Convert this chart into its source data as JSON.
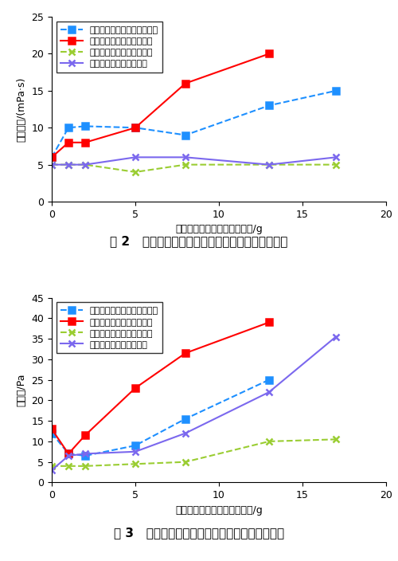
{
  "chart1": {
    "title": "图 2   加入海泡石纳米颗粒对钓井液塑性黏度的影响",
    "ylabel": "塑性黏度/(mPa·s)",
    "xlabel": "膨润土或海泡石纳米颗粒加量/g",
    "ylim": [
      0,
      25
    ],
    "xlim": [
      0,
      20
    ],
    "yticks": [
      0,
      5,
      10,
      15,
      20,
      25
    ],
    "xticks": [
      0,
      5,
      10,
      15,
      20
    ],
    "series": [
      {
        "label": "不加海泡石纳米颗粒，不加盐",
        "x": [
          0,
          1,
          2,
          5,
          8,
          13,
          17
        ],
        "y": [
          6,
          10,
          10.2,
          10,
          9,
          13,
          15
        ],
        "color": "#1E90FF",
        "linestyle": "--",
        "marker": "s",
        "filled": true
      },
      {
        "label": "加海泡石纳米颗粒，不加盐",
        "x": [
          0,
          1,
          2,
          5,
          8,
          13
        ],
        "y": [
          6,
          8,
          8,
          10,
          16,
          20
        ],
        "color": "#FF0000",
        "linestyle": "-",
        "marker": "s",
        "filled": true
      },
      {
        "label": "不加海泡石纳米颗粒，加盐",
        "x": [
          0,
          1,
          2,
          5,
          8,
          13,
          17
        ],
        "y": [
          5,
          5,
          5,
          4,
          5,
          5,
          5
        ],
        "color": "#9ACD32",
        "linestyle": "--",
        "marker": "x",
        "filled": false
      },
      {
        "label": "加海泡石纳米颗粒，加盐",
        "x": [
          0,
          1,
          2,
          5,
          8,
          13,
          17
        ],
        "y": [
          5,
          5,
          5,
          6,
          6,
          5,
          6
        ],
        "color": "#7B68EE",
        "linestyle": "-",
        "marker": "x",
        "filled": false
      }
    ]
  },
  "chart2": {
    "title": "图 3   加入海泡石纳米颗粒对钓井液动切力的影响",
    "ylabel": "动切力/Pa",
    "xlabel": "膨润土或海泡石纳米颗粒加量/g",
    "ylim": [
      0,
      45
    ],
    "xlim": [
      0,
      20
    ],
    "yticks": [
      0,
      5,
      10,
      15,
      20,
      25,
      30,
      35,
      40,
      45
    ],
    "xticks": [
      0,
      5,
      10,
      15,
      20
    ],
    "series": [
      {
        "label": "不加海泡石纳米颗粒，不加盐",
        "x": [
          0,
          1,
          2,
          5,
          8,
          13
        ],
        "y": [
          12,
          7,
          6.5,
          9,
          15.5,
          25
        ],
        "color": "#1E90FF",
        "linestyle": "--",
        "marker": "s",
        "filled": true
      },
      {
        "label": "加海泡石纳米颗粒，不加盐",
        "x": [
          0,
          1,
          2,
          5,
          8,
          13
        ],
        "y": [
          13,
          7,
          11.5,
          23,
          31.5,
          39
        ],
        "color": "#FF0000",
        "linestyle": "-",
        "marker": "s",
        "filled": true
      },
      {
        "label": "不加海泡石纳米颗粒，加盐",
        "x": [
          0,
          1,
          2,
          5,
          8,
          13,
          17
        ],
        "y": [
          4,
          4,
          4,
          4.5,
          5,
          10,
          10.5
        ],
        "color": "#9ACD32",
        "linestyle": "--",
        "marker": "x",
        "filled": false
      },
      {
        "label": "加海泡石纳米颗粒，加盐",
        "x": [
          0,
          1,
          2,
          5,
          8,
          13,
          17
        ],
        "y": [
          3,
          6.5,
          7,
          7.5,
          12,
          22,
          35.5
        ],
        "color": "#7B68EE",
        "linestyle": "-",
        "marker": "x",
        "filled": false
      }
    ]
  }
}
